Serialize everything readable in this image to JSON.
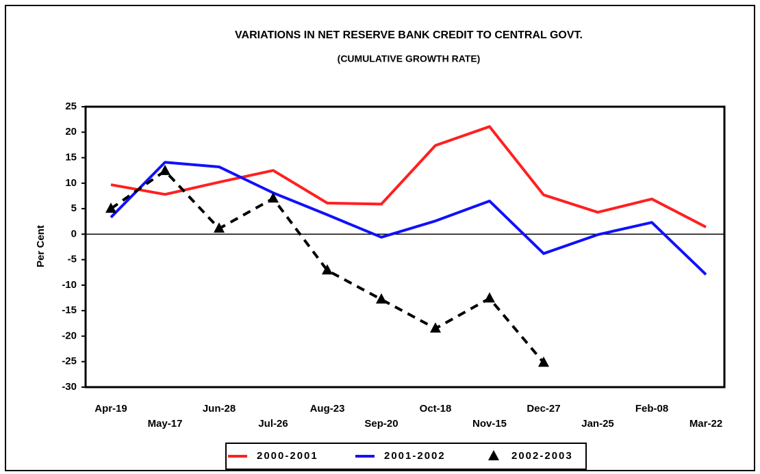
{
  "chart_data": {
    "type": "line",
    "title": "VARIATIONS IN NET RESERVE BANK CREDIT TO CENTRAL GOVT.",
    "subtitle": "(CUMULATIVE GROWTH RATE)",
    "y_label": "Per Cent",
    "categories": [
      "Apr-19",
      "May-17",
      "Jun-28",
      "Jul-26",
      "Aug-23",
      "Sep-20",
      "Oct-18",
      "Nov-15",
      "Dec-27",
      "Jan-25",
      "Feb-08",
      "Mar-22"
    ],
    "series": [
      {
        "name": "2000-2001",
        "color": "#ff2020",
        "style": "solid",
        "values": [
          9.7,
          7.8,
          10.2,
          12.5,
          6.1,
          5.9,
          17.4,
          21.1,
          7.7,
          4.3,
          6.9,
          1.4
        ]
      },
      {
        "name": "2001-2002",
        "color": "#1010ff",
        "style": "solid",
        "values": [
          3.3,
          14.1,
          13.2,
          8.1,
          3.8,
          -0.6,
          2.6,
          6.5,
          -3.8,
          -0.1,
          2.3,
          -7.9
        ]
      },
      {
        "name": "2002-2003",
        "color": "#000000",
        "style": "dashed",
        "marker": "triangle",
        "values": [
          5.0,
          12.4,
          1.1,
          7.0,
          -7.1,
          -12.8,
          -18.5,
          -12.6,
          -25.2,
          null,
          null,
          null
        ]
      }
    ],
    "ylim": [
      -30,
      25
    ],
    "yticks": [
      -30,
      -25,
      -20,
      -15,
      -10,
      -5,
      0,
      5,
      10,
      15,
      20,
      25
    ],
    "zero_line": true,
    "grid": false,
    "legend": "bottom"
  }
}
